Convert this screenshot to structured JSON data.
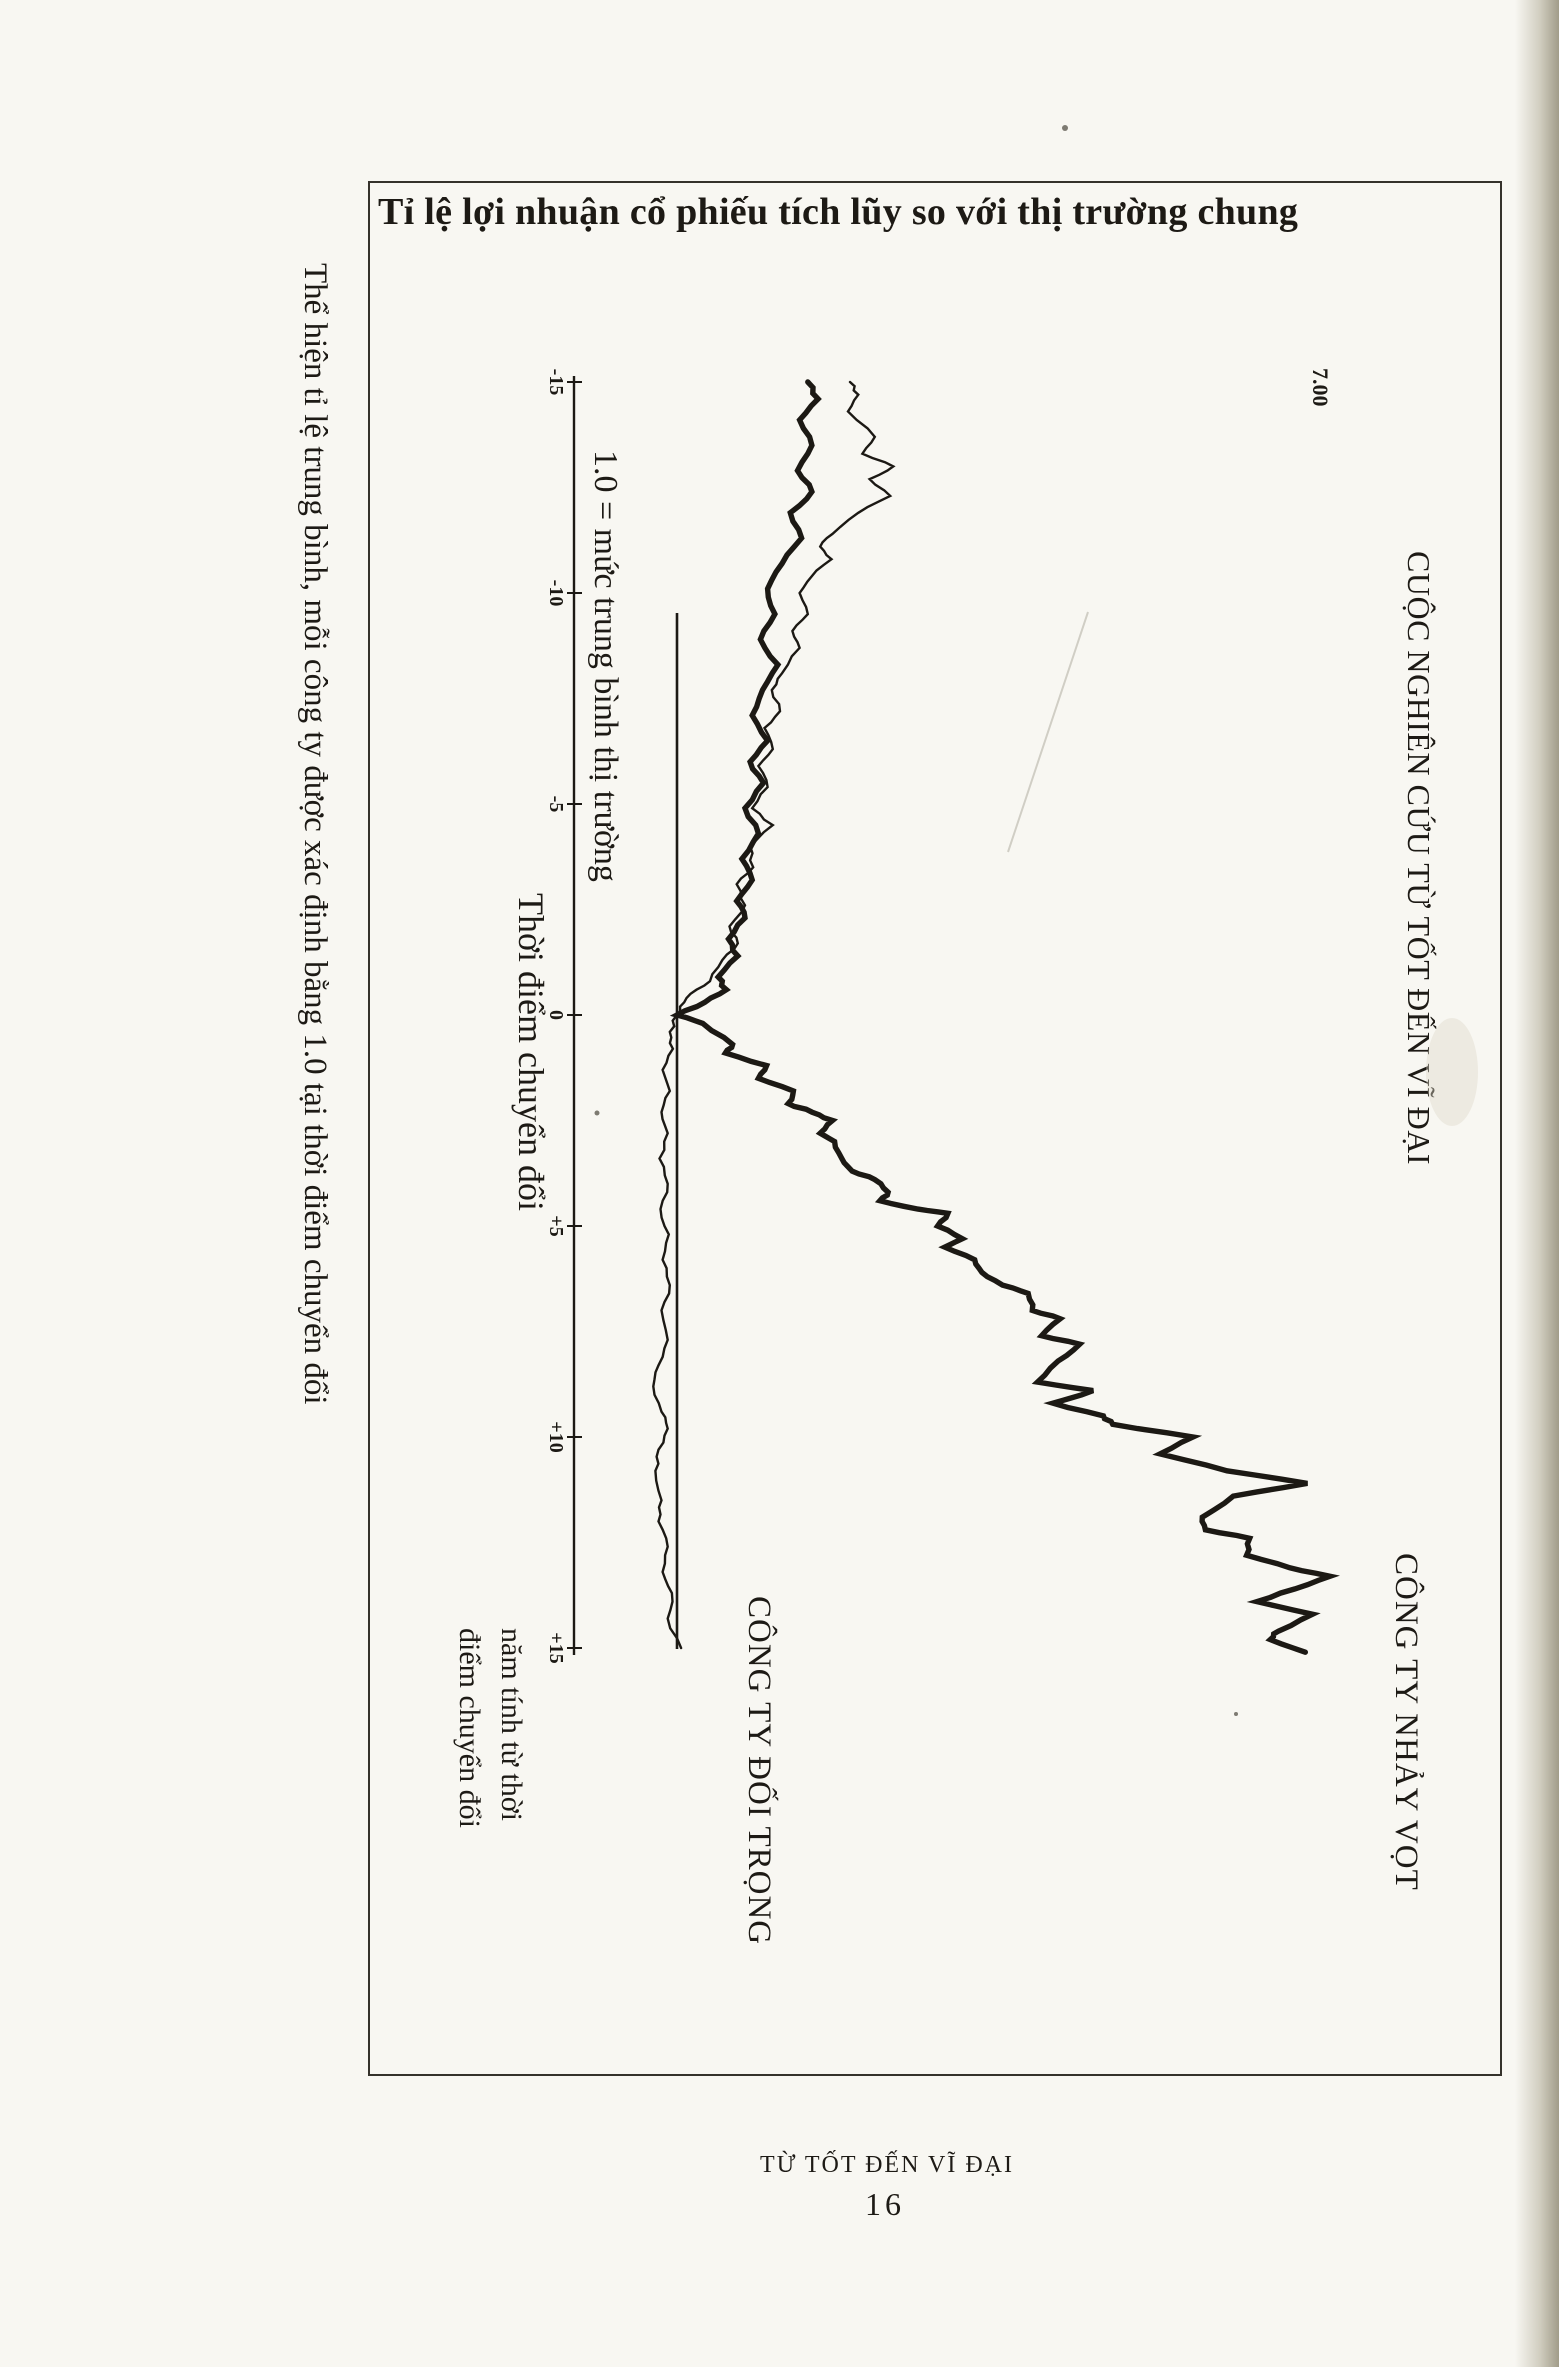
{
  "page": {
    "side_note": "Thể hiện tỉ lệ trung bình, mỗi công ty được xác định bằng 1.0 tại thời điểm chuyển đổi",
    "footer_title": "TỪ TỐT ĐẾN VĨ ĐẠI",
    "page_number": "16"
  },
  "chart": {
    "title": "Tỉ lệ lợi nhuận cổ phiếu tích lũy so với thị trường chung",
    "study_label": "CUỘC NGHIÊN CỨU TỪ TỐT ĐẾN VĨ ĐẠI",
    "ymax_label": "7.00",
    "baseline_label": "1.0 = mức trung bình thị trường",
    "transition_label": "Thời điểm chuyển đổi",
    "xaxis_label_line1": "năm tính từ thời",
    "xaxis_label_line2": "điểm chuyển đổi",
    "series_labels": {
      "good_to_great": "CÔNG TY NHẢY VỌT",
      "comparison": "CÔNG TY ĐỐI TRỌNG"
    },
    "ink_color": "#1c1914",
    "paper_color": "#f8f7f2"
  },
  "chart_data": {
    "type": "line",
    "title": "Tỉ lệ lợi nhuận cổ phiếu tích lũy so với thị trường chung",
    "xlabel": "năm tính từ thời điểm chuyển đổi",
    "x_range": [
      -15,
      15.2
    ],
    "x_ticks": [
      -15,
      -10,
      -5,
      0,
      5,
      10,
      15
    ],
    "x_tick_labels": [
      "-15",
      "-10",
      "-5",
      "0",
      "+5",
      "+10",
      "+15"
    ],
    "y_baseline": {
      "value": 1.0,
      "label": "1.0 = mức trung bình thị trường"
    },
    "y_max_label": "7.00",
    "orientation_on_page": "rotated 90 degrees clockwise",
    "annotations": [
      "Thời điểm chuyển đổi",
      "CUỘC NGHIÊN CỨU TỪ TỐT ĐẾN VĨ ĐẠI"
    ],
    "series": [
      {
        "name": "CÔNG TY NHẢY VỌT",
        "style": "thick",
        "points": [
          [
            -15.0,
            2.27
          ],
          [
            -14.6,
            2.37
          ],
          [
            -14.1,
            2.19
          ],
          [
            -13.5,
            2.31
          ],
          [
            -12.9,
            2.17
          ],
          [
            -12.4,
            2.31
          ],
          [
            -11.9,
            2.1
          ],
          [
            -11.3,
            2.21
          ],
          [
            -10.7,
            2.02
          ],
          [
            -10.1,
            1.88
          ],
          [
            -9.5,
            1.95
          ],
          [
            -8.9,
            1.81
          ],
          [
            -8.3,
            1.98
          ],
          [
            -7.7,
            1.83
          ],
          [
            -7.1,
            1.73
          ],
          [
            -6.5,
            1.88
          ],
          [
            -6.0,
            1.71
          ],
          [
            -5.5,
            1.84
          ],
          [
            -4.9,
            1.66
          ],
          [
            -4.3,
            1.79
          ],
          [
            -3.7,
            1.63
          ],
          [
            -3.2,
            1.73
          ],
          [
            -2.7,
            1.58
          ],
          [
            -2.3,
            1.66
          ],
          [
            -1.8,
            1.5
          ],
          [
            -1.4,
            1.59
          ],
          [
            -0.9,
            1.4
          ],
          [
            -0.6,
            1.48
          ],
          [
            -0.3,
            1.27
          ],
          [
            0.0,
            1.0
          ],
          [
            0.2,
            1.25
          ],
          [
            0.7,
            1.54
          ],
          [
            0.9,
            1.47
          ],
          [
            1.2,
            1.87
          ],
          [
            1.5,
            1.79
          ],
          [
            1.8,
            2.13
          ],
          [
            2.1,
            2.08
          ],
          [
            2.3,
            2.31
          ],
          [
            2.5,
            2.51
          ],
          [
            2.8,
            2.39
          ],
          [
            3.0,
            2.53
          ],
          [
            3.4,
            2.6
          ],
          [
            3.7,
            2.7
          ],
          [
            3.9,
            2.92
          ],
          [
            4.2,
            3.05
          ],
          [
            4.4,
            2.97
          ],
          [
            4.6,
            3.34
          ],
          [
            4.7,
            3.63
          ],
          [
            5.0,
            3.53
          ],
          [
            5.3,
            3.77
          ],
          [
            5.5,
            3.6
          ],
          [
            5.8,
            3.89
          ],
          [
            6.1,
            3.96
          ],
          [
            6.4,
            4.16
          ],
          [
            6.6,
            4.41
          ],
          [
            7.0,
            4.45
          ],
          [
            7.2,
            4.72
          ],
          [
            7.6,
            4.54
          ],
          [
            7.8,
            4.91
          ],
          [
            8.2,
            4.7
          ],
          [
            8.7,
            4.5
          ],
          [
            8.9,
            5.04
          ],
          [
            9.2,
            4.65
          ],
          [
            9.5,
            5.14
          ],
          [
            9.7,
            5.23
          ],
          [
            10.0,
            6.01
          ],
          [
            10.4,
            5.69
          ],
          [
            10.8,
            6.34
          ],
          [
            11.1,
            7.12
          ],
          [
            11.4,
            6.4
          ],
          [
            11.9,
            6.1
          ],
          [
            12.2,
            6.13
          ],
          [
            12.4,
            6.56
          ],
          [
            12.8,
            6.53
          ],
          [
            13.1,
            6.95
          ],
          [
            13.3,
            7.34
          ],
          [
            13.6,
            7.0
          ],
          [
            13.9,
            6.63
          ],
          [
            14.2,
            7.17
          ],
          [
            14.6,
            6.84
          ],
          [
            14.8,
            6.76
          ],
          [
            15.1,
            7.1
          ]
        ]
      },
      {
        "name": "CÔNG TY ĐỐI TRỌNG",
        "style": "thin",
        "points": [
          [
            -15.0,
            2.68
          ],
          [
            -14.7,
            2.76
          ],
          [
            -14.3,
            2.66
          ],
          [
            -13.7,
            2.92
          ],
          [
            -13.3,
            2.8
          ],
          [
            -13.0,
            3.1
          ],
          [
            -12.7,
            2.87
          ],
          [
            -12.3,
            3.07
          ],
          [
            -11.9,
            2.76
          ],
          [
            -11.4,
            2.51
          ],
          [
            -11.1,
            2.39
          ],
          [
            -10.8,
            2.5
          ],
          [
            -10.4,
            2.31
          ],
          [
            -10.0,
            2.19
          ],
          [
            -9.5,
            2.27
          ],
          [
            -9.1,
            2.12
          ],
          [
            -8.7,
            2.19
          ],
          [
            -8.1,
            2.02
          ],
          [
            -7.7,
            1.92
          ],
          [
            -7.2,
            2.0
          ],
          [
            -6.8,
            1.85
          ],
          [
            -6.3,
            1.93
          ],
          [
            -5.9,
            1.79
          ],
          [
            -5.4,
            1.88
          ],
          [
            -4.9,
            1.73
          ],
          [
            -4.5,
            1.93
          ],
          [
            -4.0,
            1.71
          ],
          [
            -3.5,
            1.74
          ],
          [
            -3.1,
            1.58
          ],
          [
            -2.6,
            1.66
          ],
          [
            -2.1,
            1.51
          ],
          [
            -1.7,
            1.59
          ],
          [
            -1.3,
            1.44
          ],
          [
            -0.8,
            1.32
          ],
          [
            -0.5,
            1.13
          ],
          [
            -0.2,
            1.03
          ],
          [
            0.0,
            1.0
          ],
          [
            0.4,
            0.93
          ],
          [
            0.8,
            0.96
          ],
          [
            1.3,
            0.86
          ],
          [
            1.8,
            0.93
          ],
          [
            2.3,
            0.85
          ],
          [
            2.8,
            0.91
          ],
          [
            3.4,
            0.83
          ],
          [
            4.0,
            0.91
          ],
          [
            4.6,
            0.84
          ],
          [
            5.2,
            0.92
          ],
          [
            5.8,
            0.86
          ],
          [
            6.4,
            0.93
          ],
          [
            7.0,
            0.85
          ],
          [
            7.7,
            0.91
          ],
          [
            8.3,
            0.82
          ],
          [
            8.8,
            0.77
          ],
          [
            9.4,
            0.85
          ],
          [
            9.8,
            0.91
          ],
          [
            10.3,
            0.82
          ],
          [
            10.8,
            0.79
          ],
          [
            11.5,
            0.85
          ],
          [
            12.0,
            0.82
          ],
          [
            12.6,
            0.91
          ],
          [
            13.2,
            0.86
          ],
          [
            13.7,
            0.95
          ],
          [
            14.3,
            0.91
          ],
          [
            15.0,
            1.04
          ]
        ]
      }
    ]
  }
}
